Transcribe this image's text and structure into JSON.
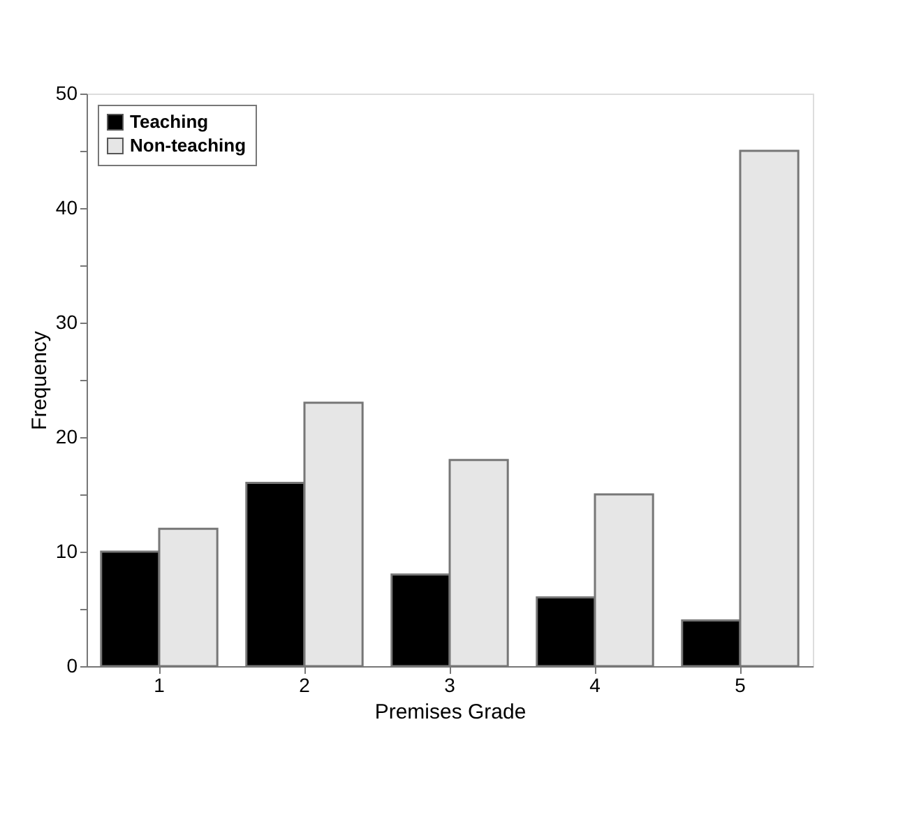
{
  "chart_data": {
    "type": "bar",
    "xlabel": "Premises Grade",
    "ylabel": "Frequency",
    "categories": [
      "1",
      "2",
      "3",
      "4",
      "5"
    ],
    "series": [
      {
        "name": "Teaching",
        "color": "#000000",
        "values": [
          10,
          16,
          8,
          6,
          4
        ]
      },
      {
        "name": "Non-teaching",
        "color": "#e6e6e6",
        "values": [
          12,
          23,
          18,
          15,
          45
        ]
      }
    ],
    "ylim": [
      0,
      50
    ],
    "yticks": [
      0,
      {
        "value": 5,
        "label": null
      },
      10,
      {
        "value": 15,
        "label": null
      },
      20,
      {
        "value": 25,
        "label": null
      },
      30,
      {
        "value": 35,
        "label": null
      },
      40,
      {
        "value": 45,
        "label": null
      },
      50
    ],
    "grid": false,
    "legend": "top left"
  }
}
